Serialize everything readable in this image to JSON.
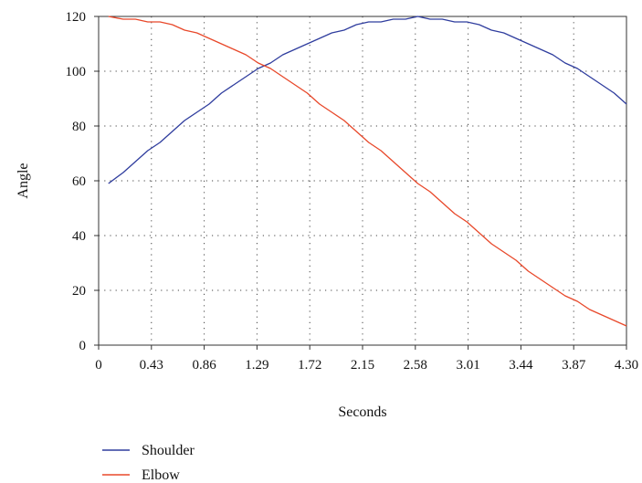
{
  "chart_data": {
    "type": "line",
    "title": "",
    "xlabel": "Seconds",
    "ylabel": "Angle",
    "xlim": [
      0,
      4.3
    ],
    "ylim": [
      0,
      120
    ],
    "xticks": [
      "0",
      "0.43",
      "0.86",
      "1.29",
      "1.72",
      "2.15",
      "2.58",
      "3.01",
      "3.44",
      "3.87",
      "4.30"
    ],
    "yticks": [
      "0",
      "20",
      "40",
      "60",
      "80",
      "100",
      "120"
    ],
    "grid": "dotted",
    "legend_position": "bottom-left",
    "series": [
      {
        "name": "Shoulder",
        "color": "#2f3d9e",
        "x": [
          0.08,
          0.2,
          0.3,
          0.4,
          0.5,
          0.6,
          0.7,
          0.8,
          0.9,
          1.0,
          1.1,
          1.2,
          1.3,
          1.4,
          1.5,
          1.6,
          1.7,
          1.8,
          1.9,
          2.0,
          2.1,
          2.2,
          2.3,
          2.4,
          2.5,
          2.6,
          2.7,
          2.8,
          2.9,
          3.0,
          3.1,
          3.2,
          3.3,
          3.4,
          3.5,
          3.6,
          3.7,
          3.8,
          3.9,
          4.0,
          4.1,
          4.2,
          4.3
        ],
        "y": [
          59,
          63,
          67,
          71,
          74,
          78,
          82,
          85,
          88,
          92,
          95,
          98,
          101,
          103,
          106,
          108,
          110,
          112,
          114,
          115,
          117,
          118,
          118,
          119,
          119,
          120,
          119,
          119,
          118,
          118,
          117,
          115,
          114,
          112,
          110,
          108,
          106,
          103,
          101,
          98,
          95,
          92,
          88
        ]
      },
      {
        "name": "Elbow",
        "color": "#e8482a",
        "x": [
          0.08,
          0.2,
          0.3,
          0.4,
          0.5,
          0.6,
          0.7,
          0.8,
          0.9,
          1.0,
          1.1,
          1.2,
          1.3,
          1.4,
          1.5,
          1.6,
          1.7,
          1.8,
          1.9,
          2.0,
          2.1,
          2.2,
          2.3,
          2.4,
          2.5,
          2.6,
          2.7,
          2.8,
          2.9,
          3.0,
          3.1,
          3.2,
          3.3,
          3.4,
          3.5,
          3.6,
          3.7,
          3.8,
          3.9,
          4.0,
          4.1,
          4.2,
          4.3
        ],
        "y": [
          120,
          119,
          119,
          118,
          118,
          117,
          115,
          114,
          112,
          110,
          108,
          106,
          103,
          101,
          98,
          95,
          92,
          88,
          85,
          82,
          78,
          74,
          71,
          67,
          63,
          59,
          56,
          52,
          48,
          45,
          41,
          37,
          34,
          31,
          27,
          24,
          21,
          18,
          16,
          13,
          11,
          9,
          7
        ]
      }
    ]
  }
}
